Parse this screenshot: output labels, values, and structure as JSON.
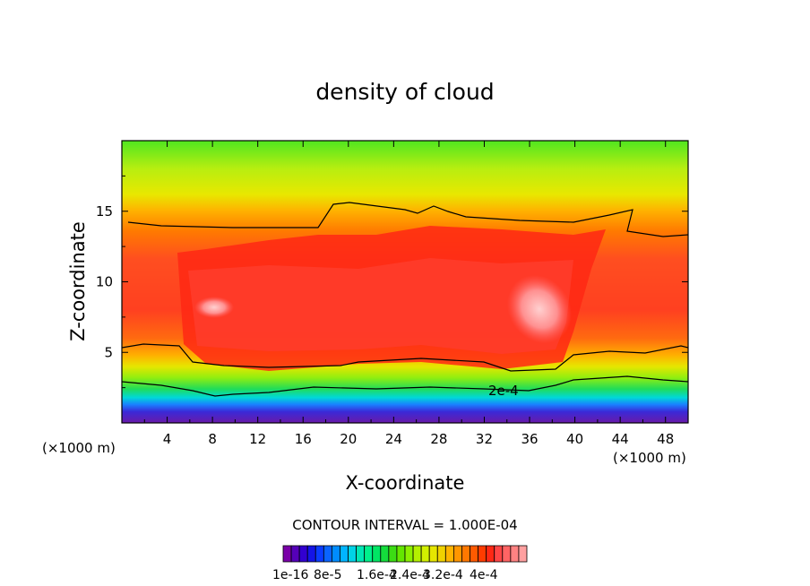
{
  "chart_data": {
    "type": "heatmap",
    "title": "density of cloud",
    "xlabel": "X-coordinate",
    "ylabel": "Z-coordinate",
    "x_unit": "(×1000 m)",
    "y_unit": "(×1000 m)",
    "xlim": [
      0,
      50
    ],
    "ylim": [
      0,
      20
    ],
    "xticks": [
      "4",
      "8",
      "12",
      "16",
      "20",
      "24",
      "28",
      "32",
      "36",
      "40",
      "44",
      "48"
    ],
    "yticks": [
      "5",
      "10",
      "15"
    ],
    "contour_interval_text": "CONTOUR INTERVAL = 1.000E-04",
    "contour_line_label": "2e-4",
    "colorbar_labels": [
      "1e-16",
      "8e-5",
      "1.6e-4",
      "2.4e-4",
      "3.2e-4",
      "4e-4"
    ],
    "colormap": [
      "#7a00a8",
      "#5500b8",
      "#3200d0",
      "#1414e6",
      "#0a3cff",
      "#0a64ff",
      "#008cff",
      "#00b4ff",
      "#00d2e6",
      "#00e6b4",
      "#00f08c",
      "#00e664",
      "#14dc3c",
      "#3cdc14",
      "#64e600",
      "#8cf000",
      "#b4f000",
      "#d2f000",
      "#e6e600",
      "#f0d200",
      "#ffb400",
      "#ff9600",
      "#ff7800",
      "#ff5a00",
      "#ff3c00",
      "#ff2814",
      "#ff4646",
      "#ff6464",
      "#ff8282",
      "#ffa0a0"
    ],
    "bands": [
      {
        "z": [
          0.2,
          1.0
        ],
        "value": 0.0,
        "desc": "purple/blue base near ground"
      },
      {
        "z": [
          1.0,
          2.4
        ],
        "value": 8e-05,
        "desc": "cyan to green"
      },
      {
        "z": [
          2.4,
          4.0
        ],
        "value": 0.00016,
        "desc": "green to yellow"
      },
      {
        "z": [
          4.0,
          14.0
        ],
        "value": 0.00032,
        "desc": "orange to red core"
      },
      {
        "z": [
          14.0,
          20.0
        ],
        "value": 0.0002,
        "desc": "yellow to green top"
      }
    ],
    "peak_regions": [
      {
        "x": 8,
        "z": 8.3,
        "value": 0.00037
      },
      {
        "x": 37,
        "z": 8.3,
        "value": 0.0004
      }
    ],
    "grid": false
  }
}
